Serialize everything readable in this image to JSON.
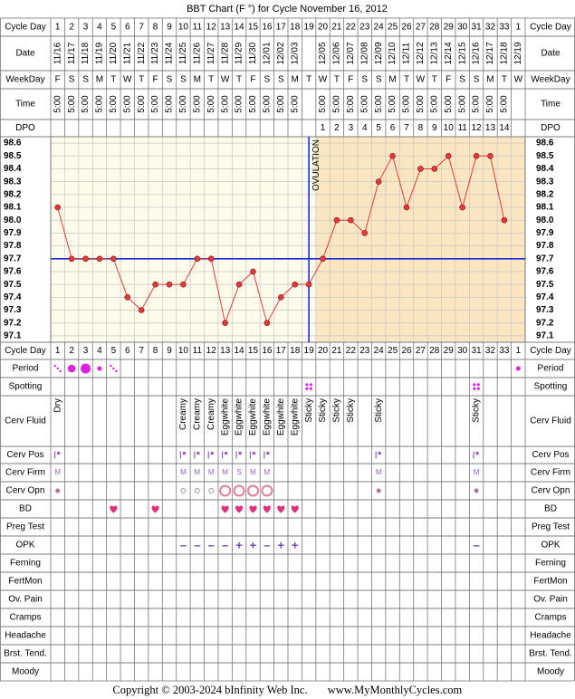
{
  "chart_data": {
    "type": "line",
    "title": "BBT Chart (F °) for Cycle November 16, 2012",
    "color": "#e03a3a",
    "ylim": [
      97.05,
      98.65
    ],
    "yticks": [
      97.1,
      97.2,
      97.3,
      97.4,
      97.5,
      97.6,
      97.7,
      97.8,
      97.9,
      {
        "value": 98,
        "label": "98.0"
      },
      98.1,
      98.2,
      98.3,
      98.4,
      98.5,
      98.6
    ],
    "grid": true,
    "values": [
      98.1,
      97.7,
      97.7,
      97.7,
      97.7,
      97.4,
      97.3,
      97.5,
      97.5,
      97.5,
      97.7,
      97.7,
      97.2,
      97.5,
      97.6,
      97.2,
      97.4,
      97.5,
      97.5,
      97.7,
      98.0,
      98.0,
      97.9,
      98.3,
      98.5,
      98.1,
      98.4,
      98.4,
      98.5,
      98.1,
      98.5,
      98.5,
      98.0,
      null
    ],
    "coverline": 97.7,
    "ovulation_day": 19,
    "ovulation_label": "OVULATION",
    "cycle_days": [
      1,
      2,
      3,
      4,
      5,
      6,
      7,
      8,
      9,
      10,
      11,
      12,
      13,
      14,
      15,
      16,
      17,
      18,
      19,
      20,
      21,
      22,
      23,
      24,
      25,
      26,
      27,
      28,
      29,
      30,
      31,
      32,
      33,
      1
    ],
    "dates": [
      "11/16",
      "11/17",
      "11/18",
      "11/19",
      "11/20",
      "11/21",
      "11/22",
      "11/23",
      "11/24",
      "11/25",
      "11/26",
      "11/27",
      "11/28",
      "11/29",
      "11/30",
      "12/01",
      "12/02",
      "12/03",
      null,
      "12/05",
      "12/06",
      "12/07",
      "12/08",
      "12/09",
      "12/10",
      "12/11",
      "12/12",
      "12/13",
      "12/14",
      "12/15",
      "12/16",
      "12/17",
      "12/18",
      "12/19"
    ],
    "weekdays": [
      "F",
      "S",
      "S",
      "M",
      "T",
      "W",
      "T",
      "F",
      "S",
      "S",
      "M",
      "T",
      "W",
      "T",
      "F",
      "S",
      "S",
      "M",
      "T",
      "W",
      "T",
      "F",
      "S",
      "S",
      "M",
      "T",
      "W",
      "T",
      "F",
      "S",
      "S",
      "M",
      "T",
      "W"
    ],
    "times": [
      "5:00",
      "5:00",
      "5:00",
      "5:00",
      "5:00",
      "5:00",
      "5:00",
      "5:00",
      "5:00",
      "5:00",
      "5:00",
      "5:00",
      "5:00",
      "5:00",
      "5:00",
      "5:00",
      "5:00",
      "5:00",
      null,
      "5:00",
      "5:00",
      "5:00",
      "5:00",
      "5:00",
      "5:00",
      "5:00",
      "5:00",
      "5:00",
      "5:00",
      "5:00",
      "5:00",
      "5:00",
      "5:00",
      null
    ],
    "dpo": [
      null,
      null,
      null,
      null,
      null,
      null,
      null,
      null,
      null,
      null,
      null,
      null,
      null,
      null,
      null,
      null,
      null,
      null,
      null,
      1,
      2,
      3,
      4,
      5,
      6,
      7,
      8,
      9,
      10,
      11,
      12,
      13,
      14,
      null
    ]
  },
  "row_labels": [
    "Cycle Day",
    "Date",
    "WeekDay",
    "Time",
    "DPO",
    "Cycle Day",
    "Period",
    "Spotting",
    "Cerv Fluid",
    "Cerv Pos",
    "Cerv Firm",
    "Cerv Opn",
    "BD",
    "Preg Test",
    "OPK",
    "Ferning",
    "FertMon",
    "Ov. Pain",
    "Cramps",
    "Headache",
    "Brst. Tend.",
    "Moody"
  ],
  "period": [
    1,
    3,
    4,
    2,
    1,
    null,
    null,
    null,
    null,
    null,
    null,
    null,
    null,
    null,
    null,
    null,
    null,
    null,
    null,
    null,
    null,
    null,
    null,
    null,
    null,
    null,
    null,
    null,
    null,
    null,
    null,
    null,
    null,
    2
  ],
  "spotting": [
    null,
    null,
    null,
    null,
    null,
    null,
    null,
    null,
    null,
    null,
    null,
    null,
    null,
    null,
    null,
    null,
    null,
    null,
    1,
    null,
    null,
    null,
    null,
    null,
    null,
    null,
    null,
    null,
    null,
    null,
    1,
    null,
    null,
    null
  ],
  "cerv_fluid": [
    "Dry",
    null,
    null,
    null,
    null,
    null,
    null,
    null,
    null,
    "Creamy",
    "Creamy",
    "Creamy",
    "Eggwhite",
    "Eggwhite",
    "Eggwhite",
    "Eggwhite",
    "Eggwhite",
    "Eggwhite",
    "Sticky",
    "Sticky",
    "Sticky",
    "Sticky",
    null,
    "Sticky",
    null,
    null,
    null,
    null,
    null,
    null,
    "Sticky",
    null,
    null,
    null
  ],
  "cerv_pos": [
    1,
    null,
    null,
    null,
    null,
    null,
    null,
    null,
    null,
    1,
    1,
    1,
    1,
    1,
    1,
    1,
    null,
    null,
    null,
    null,
    null,
    null,
    null,
    1,
    null,
    null,
    null,
    null,
    null,
    null,
    1,
    null,
    null,
    null
  ],
  "cerv_firm": [
    "M",
    null,
    null,
    null,
    null,
    null,
    null,
    null,
    null,
    "M",
    "M",
    "M",
    "M",
    "S",
    "M",
    "M",
    null,
    null,
    null,
    null,
    null,
    null,
    null,
    "M",
    null,
    null,
    null,
    null,
    null,
    null,
    "M",
    null,
    null,
    null
  ],
  "cerv_opn": [
    1,
    null,
    null,
    null,
    null,
    null,
    null,
    null,
    null,
    2,
    2,
    2,
    3,
    3,
    3,
    3,
    null,
    null,
    null,
    null,
    null,
    null,
    null,
    1,
    null,
    null,
    null,
    null,
    null,
    null,
    1,
    null,
    null,
    null
  ],
  "bd": [
    null,
    null,
    null,
    null,
    1,
    null,
    null,
    1,
    null,
    null,
    null,
    null,
    1,
    1,
    1,
    1,
    1,
    1,
    null,
    null,
    null,
    null,
    null,
    null,
    null,
    null,
    null,
    null,
    null,
    null,
    null,
    null,
    null,
    null
  ],
  "opk": [
    null,
    null,
    null,
    null,
    null,
    null,
    null,
    null,
    null,
    "–",
    "–",
    "–",
    "–",
    "+",
    "+",
    "–",
    "+",
    "+",
    null,
    null,
    null,
    null,
    null,
    null,
    null,
    null,
    null,
    null,
    null,
    null,
    "–",
    null,
    null,
    null
  ],
  "footer": {
    "copyright": "Copyright © 2003-2024 bInfinity Web Inc.",
    "site": "www.MyMonthlyCycles.com"
  }
}
